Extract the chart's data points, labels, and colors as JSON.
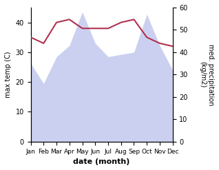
{
  "months": [
    "Jan",
    "Feb",
    "Mar",
    "Apr",
    "May",
    "Jun",
    "Jul",
    "Aug",
    "Sep",
    "Oct",
    "Nov",
    "Dec"
  ],
  "month_indices": [
    0,
    1,
    2,
    3,
    4,
    5,
    6,
    7,
    8,
    9,
    10,
    11
  ],
  "max_temp": [
    35,
    33,
    40,
    41,
    38,
    38,
    38,
    40,
    41,
    35,
    33,
    32
  ],
  "precipitation": [
    35,
    26,
    38,
    43,
    58,
    44,
    38,
    39,
    40,
    57,
    43,
    32
  ],
  "temp_ylim": [
    0,
    45
  ],
  "precip_ylim": [
    0,
    60
  ],
  "temp_color": "#b03050",
  "precip_fill_color": "#b0b8e8",
  "precip_fill_alpha": 0.65,
  "xlabel": "date (month)",
  "ylabel_left": "max temp (C)",
  "ylabel_right": "med. precipitation\n(kg/m2)",
  "bg_color": "#ffffff",
  "temp_yticks": [
    0,
    10,
    20,
    30,
    40
  ],
  "precip_yticks": [
    0,
    10,
    20,
    30,
    40,
    50,
    60
  ],
  "figsize": [
    3.18,
    2.47
  ],
  "dpi": 100
}
